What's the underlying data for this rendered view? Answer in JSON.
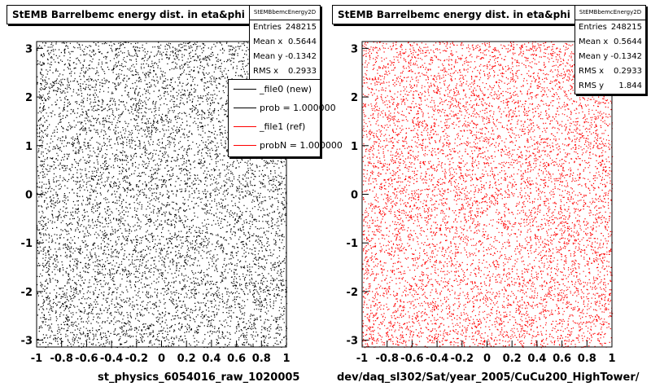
{
  "pads": [
    {
      "title": "StEMB Barrelbemc energy dist. in eta&phi",
      "xlabel": "st_physics_6054016_raw_1020005",
      "stats": {
        "name": "StEMBbemcEnergy2D",
        "rows": [
          {
            "label": "Entries",
            "value": "248215"
          },
          {
            "label": "Mean x",
            "value": "0.5644"
          },
          {
            "label": "Mean y",
            "value": "-0.1342"
          },
          {
            "label": "RMS x",
            "value": "0.2933"
          }
        ]
      },
      "legend": [
        {
          "label": "_file0 (new)",
          "color": "#000000"
        },
        {
          "label": "prob = 1.000000",
          "color": "#000000"
        },
        {
          "label": "_file1 (ref)",
          "color": "#ff0000"
        },
        {
          "label": "probN = 1.000000",
          "color": "#ff0000"
        }
      ]
    },
    {
      "title": "StEMB Barrelbemc energy dist. in eta&phi",
      "xlabel": "dev/daq_sl302/Sat/year_2005/CuCu200_HighTower/",
      "stats": {
        "name": "StEMBbemcEnergy2D",
        "rows": [
          {
            "label": "Entries",
            "value": "248215"
          },
          {
            "label": "Mean x",
            "value": "0.5644"
          },
          {
            "label": "Mean y",
            "value": "-0.1342"
          },
          {
            "label": "RMS x",
            "value": "0.2933"
          },
          {
            "label": "RMS y",
            "value": "1.844"
          }
        ]
      }
    }
  ],
  "chart_data": [
    {
      "type": "scatter",
      "title": "StEMB Barrelbemc energy dist. in eta&phi",
      "xlabel": "st_physics_6054016_raw_1020005",
      "ylabel": "",
      "xlim": [
        -1,
        1
      ],
      "ylim": [
        -3.14,
        3.14
      ],
      "xticks": [
        "-1",
        "-0.8",
        "-0.6",
        "-0.4",
        "-0.2",
        "0",
        "0.2",
        "0.4",
        "0.6",
        "0.8",
        "1"
      ],
      "yticks": [
        "-3",
        "-2",
        "-1",
        "0",
        "1",
        "2",
        "3"
      ],
      "color": "#000000",
      "series": [
        {
          "name": "_file0 (new)",
          "entries": 248215,
          "mean_x": 0.5644,
          "mean_y": -0.1342,
          "rms_x": 0.2933
        }
      ]
    },
    {
      "type": "scatter",
      "title": "StEMB Barrelbemc energy dist. in eta&phi",
      "xlabel": "dev/daq_sl302/Sat/year_2005/CuCu200_HighTower/",
      "ylabel": "",
      "xlim": [
        -1,
        1
      ],
      "ylim": [
        -3.14,
        3.14
      ],
      "xticks": [
        "-1",
        "-0.8",
        "-0.6",
        "-0.4",
        "-0.2",
        "0",
        "0.2",
        "0.4",
        "0.6",
        "0.8",
        "1"
      ],
      "yticks": [
        "-3",
        "-2",
        "-1",
        "0",
        "1",
        "2",
        "3"
      ],
      "color": "#ff0000",
      "series": [
        {
          "name": "_file1 (ref)",
          "entries": 248215,
          "mean_x": 0.5644,
          "mean_y": -0.1342,
          "rms_x": 0.2933,
          "rms_y": 1.844
        }
      ]
    }
  ]
}
